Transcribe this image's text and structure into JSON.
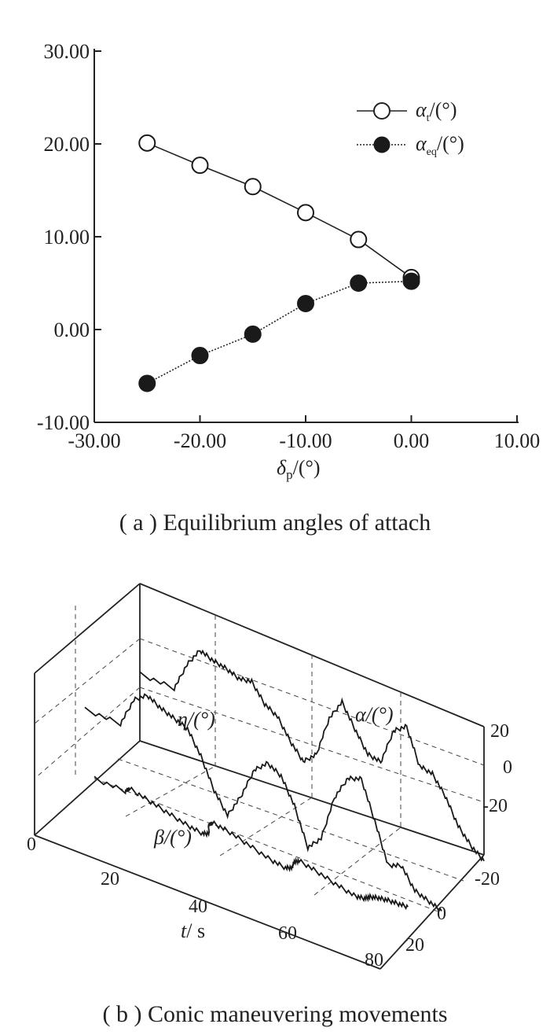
{
  "chart_data": [
    {
      "type": "line",
      "caption": "( a ) Equilibrium angles of attach",
      "xlabel_symbol": "δ",
      "xlabel_sub": "p",
      "xlabel_unit": "/(°)",
      "xlim": [
        -30,
        10
      ],
      "ylim": [
        -10,
        30
      ],
      "x_ticks": [
        -30,
        -20,
        -10,
        0,
        10
      ],
      "x_tick_labels": [
        "-30.00",
        "-20.00",
        "-10.00",
        "0.00",
        "10.00"
      ],
      "y_ticks": [
        -10,
        0,
        10,
        20,
        30
      ],
      "y_tick_labels": [
        "-10.00",
        "0.00",
        "10.00",
        "20.00",
        "30.00"
      ],
      "legend_position": "top-right",
      "series": [
        {
          "name_symbol": "α",
          "name_sub": "t",
          "name_unit": "/(°)",
          "marker": "open-circle",
          "line": "solid",
          "x": [
            -25,
            -20,
            -15,
            -10,
            -5,
            0
          ],
          "y": [
            20.1,
            17.7,
            15.4,
            12.6,
            9.7,
            5.6
          ]
        },
        {
          "name_symbol": "α",
          "name_sub": "eq",
          "name_unit": "/(°)",
          "marker": "filled-circle",
          "line": "dotted",
          "x": [
            -25,
            -20,
            -15,
            -10,
            -5,
            0
          ],
          "y": [
            -5.8,
            -2.8,
            -0.5,
            2.8,
            5.0,
            5.2
          ]
        }
      ]
    },
    {
      "type": "line",
      "caption": "( b ) Conic maneuvering movements",
      "projection": "3d",
      "xlabel_symbol": "t",
      "xlabel_unit": "/ s",
      "t_ticks": [
        0,
        20,
        40,
        60,
        80
      ],
      "t_tick_labels": [
        "0",
        "20",
        "40",
        "60",
        "80"
      ],
      "beta_ticks": [
        -20,
        0,
        20
      ],
      "beta_tick_labels": [
        "-20",
        "0",
        "20"
      ],
      "z_ticks": [
        -20,
        0,
        20
      ],
      "z_tick_labels": [
        "-20",
        "0",
        "20"
      ],
      "series": [
        {
          "label": "α/(°)",
          "t": [
            0,
            8,
            11,
            14,
            17,
            20,
            23,
            26,
            29,
            32,
            35,
            38,
            41,
            44,
            47,
            50,
            53,
            56,
            59,
            62,
            65,
            68,
            71,
            74,
            77,
            80
          ],
          "z": [
            0,
            0,
            12,
            20,
            18,
            17,
            15,
            16,
            9,
            6,
            -2,
            -8,
            -3,
            14,
            23,
            14,
            6,
            5,
            20,
            24,
            10,
            9,
            2,
            -8,
            -14,
            -18
          ]
        },
        {
          "label": "η/(°)",
          "t": [
            0,
            8,
            11,
            14,
            17,
            20,
            23,
            26,
            29,
            32,
            35,
            38,
            41,
            44,
            47,
            50,
            53,
            56,
            59,
            62,
            65,
            68,
            71,
            74,
            77,
            80
          ],
          "z": [
            0,
            0,
            12,
            16,
            13,
            11,
            9,
            0,
            -12,
            -20,
            -10,
            3,
            8,
            5,
            -5,
            -20,
            -14,
            5,
            15,
            17,
            2,
            -14,
            -12,
            -20,
            -22,
            -24
          ]
        },
        {
          "label": "β/(°)",
          "t": [
            0,
            8,
            11,
            14,
            17,
            20,
            23,
            26,
            29,
            32,
            35,
            38,
            41,
            44,
            47,
            50,
            53,
            56,
            59,
            62,
            65,
            68,
            71,
            74,
            77,
            80
          ],
          "beta": [
            0,
            0,
            -6,
            0,
            6,
            12,
            15,
            11,
            1,
            -5,
            -2,
            5,
            13,
            16,
            12,
            4,
            -1,
            4,
            11,
            16,
            14,
            9,
            6,
            4,
            3,
            2
          ]
        }
      ]
    }
  ]
}
